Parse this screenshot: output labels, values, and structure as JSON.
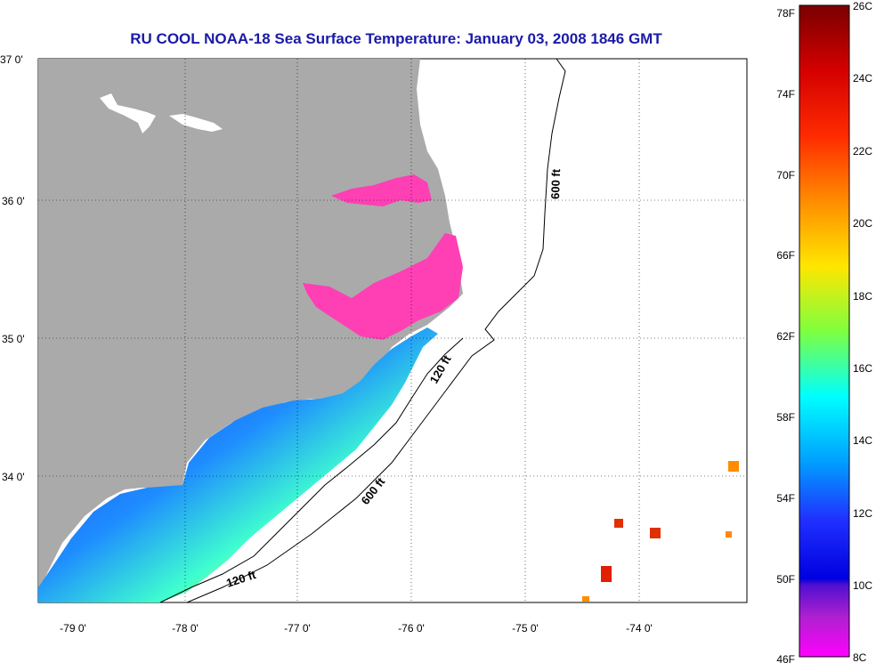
{
  "title": "RU COOL  NOAA-18  Sea Surface Temperature:  January 03, 2008 1846 GMT",
  "lat_labels": [
    "37 0'",
    "36 0'",
    "35 0'",
    "34 0'"
  ],
  "lon_labels": [
    "-79 0'",
    "-78 0'",
    "-77 0'",
    "-76 0'",
    "-75 0'",
    "-74 0'"
  ],
  "contour_labels": [
    "600 ft",
    "120 ft",
    "600 ft",
    "120 ft"
  ],
  "colorbar": {
    "fahrenheit_labels": [
      "78F",
      "74F",
      "70F",
      "66F",
      "62F",
      "58F",
      "54F",
      "50F",
      "46F"
    ],
    "celsius_labels": [
      "26C",
      "24C",
      "22C",
      "20C",
      "18C",
      "16C",
      "14C",
      "12C",
      "10C",
      "8C"
    ]
  },
  "colors": {
    "land": "#aaaaaa",
    "title": "#1a1aa8",
    "contour": "#000000",
    "estuary": "#ff3fb4"
  }
}
